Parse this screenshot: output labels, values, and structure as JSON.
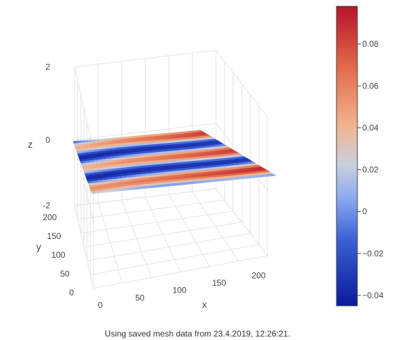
{
  "chart_data": {
    "type": "surface",
    "xlabel": "x",
    "ylabel": "y",
    "zlabel": "z",
    "x_ticks": [
      "0",
      "50",
      "100",
      "150",
      "200"
    ],
    "y_ticks": [
      "0",
      "50",
      "100",
      "150",
      "200"
    ],
    "z_ticks": [
      "2",
      "0",
      "-2"
    ],
    "xlim": [
      0,
      220
    ],
    "ylim": [
      0,
      220
    ],
    "zlim": [
      -2,
      2
    ],
    "colorscale": "coolwarm",
    "colorbar": {
      "ticks": [
        "0.08",
        "0.06",
        "0.04",
        "0.02",
        "0",
        "−0.02",
        "−0.04"
      ],
      "range": [
        -0.045,
        0.098
      ],
      "colors": [
        "#0a1a9c",
        "#3b5fd6",
        "#8caaf0",
        "#c8d0de",
        "#f2b490",
        "#e0694a",
        "#b8122a"
      ]
    }
  },
  "caption": "Using saved mesh data from 23.4.2019, 12:26:21."
}
